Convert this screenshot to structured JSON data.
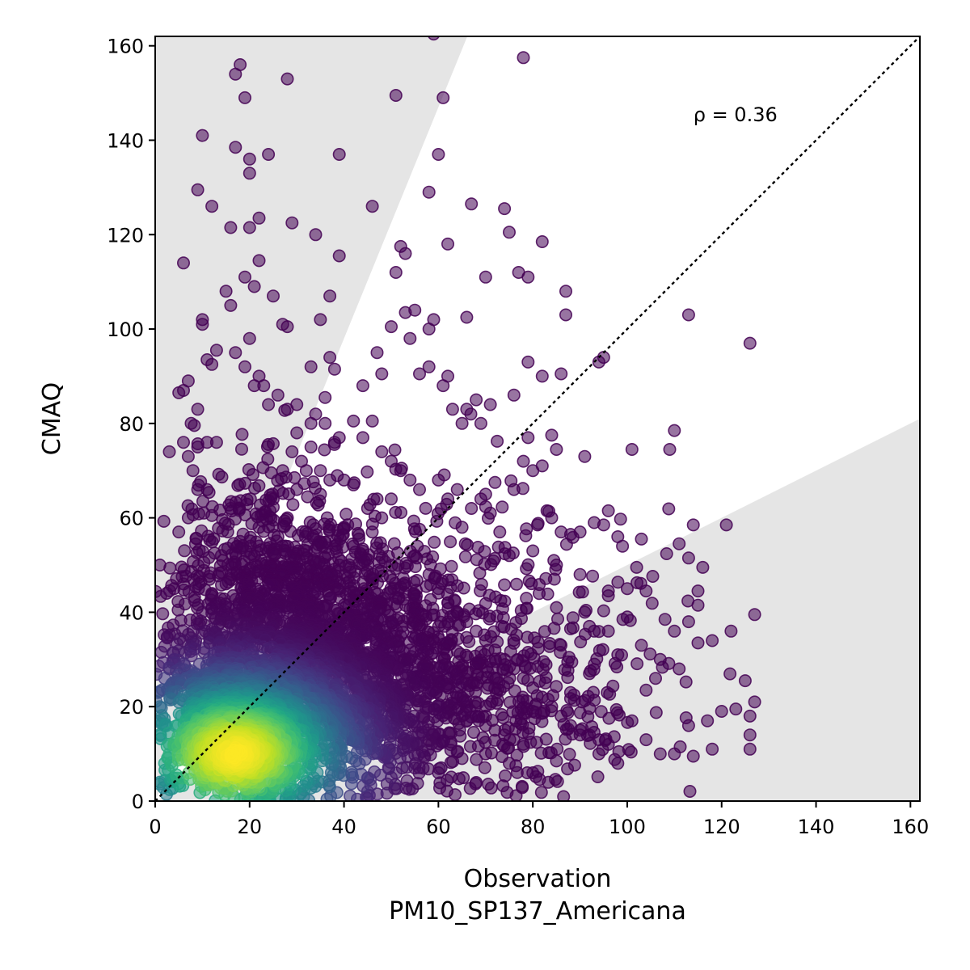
{
  "chart_data": {
    "type": "scatter",
    "title": "",
    "xlabel": "Observation",
    "xlabel_line2": "PM10_SP137_Americana",
    "ylabel": "CMAQ",
    "xlim": [
      0,
      162
    ],
    "ylim": [
      0,
      162
    ],
    "xticks": [
      0,
      20,
      40,
      60,
      80,
      100,
      120,
      140,
      160
    ],
    "yticks": [
      0,
      20,
      40,
      60,
      80,
      100,
      120,
      140,
      160
    ],
    "grid": false,
    "annotation": {
      "text": "ρ = 0.36",
      "x": 114,
      "y": 144
    },
    "reference_line": {
      "type": "identity",
      "style": "dotted",
      "color": "#000000"
    },
    "shaded_regions": {
      "color": "#e5e5e5",
      "upper_wedge_slope": 2.45,
      "lower_wedge_slope": 0.5,
      "meaning": "points outside factor-of-two band around identity"
    },
    "colormap": "viridis",
    "density_core": {
      "x": 17,
      "y": 10
    },
    "marker_alpha": 0.55,
    "outlier_points": [
      [
        6,
        114
      ],
      [
        10,
        141
      ],
      [
        12,
        126
      ],
      [
        9,
        129.5
      ],
      [
        17,
        154
      ],
      [
        18,
        156
      ],
      [
        19,
        149
      ],
      [
        22,
        123.5
      ],
      [
        20,
        133
      ],
      [
        20,
        136
      ],
      [
        17,
        138.5
      ],
      [
        28,
        153
      ],
      [
        24,
        137
      ],
      [
        16,
        121.5
      ],
      [
        20,
        121.5
      ],
      [
        29,
        122.5
      ],
      [
        34,
        120
      ],
      [
        39,
        137
      ],
      [
        35,
        102
      ],
      [
        39,
        115.5
      ],
      [
        37,
        107
      ],
      [
        46,
        126
      ],
      [
        53,
        116
      ],
      [
        51,
        149.5
      ],
      [
        59,
        162.5
      ],
      [
        61,
        149
      ],
      [
        60,
        137
      ],
      [
        58,
        129
      ],
      [
        62,
        118
      ],
      [
        74,
        125.5
      ],
      [
        67,
        126.5
      ],
      [
        75,
        120.5
      ],
      [
        78,
        157.5
      ],
      [
        82,
        118.5
      ],
      [
        77,
        112
      ],
      [
        79,
        111
      ],
      [
        70,
        111
      ],
      [
        87,
        108
      ],
      [
        66,
        102.5
      ],
      [
        87,
        103
      ],
      [
        113,
        103
      ],
      [
        126,
        97
      ],
      [
        95,
        94
      ],
      [
        94,
        93
      ],
      [
        86,
        90.5
      ],
      [
        79,
        93
      ],
      [
        82,
        90
      ],
      [
        84,
        77.5
      ],
      [
        79,
        77
      ],
      [
        85,
        74.5
      ],
      [
        91,
        73
      ],
      [
        101,
        74.5
      ],
      [
        109,
        74.5
      ],
      [
        110,
        78.5
      ],
      [
        93,
        59
      ],
      [
        96,
        61.5
      ],
      [
        95,
        58.5
      ],
      [
        98,
        56
      ],
      [
        99,
        54
      ],
      [
        103,
        55.5
      ],
      [
        111,
        54.5
      ],
      [
        114,
        58.5
      ],
      [
        121,
        58.5
      ],
      [
        113,
        51.5
      ],
      [
        116,
        49.5
      ],
      [
        102,
        49.5
      ],
      [
        104,
        44.5
      ],
      [
        96,
        44.5
      ],
      [
        96,
        43.5
      ],
      [
        100,
        45
      ],
      [
        115,
        44.5
      ],
      [
        115,
        41.5
      ],
      [
        108,
        38.5
      ],
      [
        110,
        36
      ],
      [
        113,
        38
      ],
      [
        115,
        33.5
      ],
      [
        118,
        34
      ],
      [
        122,
        36
      ],
      [
        127,
        39.5
      ],
      [
        125,
        25.5
      ],
      [
        127,
        21
      ],
      [
        126,
        18
      ],
      [
        126,
        14
      ],
      [
        126,
        11
      ],
      [
        123,
        19.5
      ],
      [
        120,
        19
      ],
      [
        117,
        17
      ],
      [
        113,
        16
      ],
      [
        110,
        10
      ],
      [
        114,
        9.5
      ],
      [
        118,
        11
      ],
      [
        107,
        10
      ],
      [
        104,
        13
      ],
      [
        101,
        17
      ],
      [
        98,
        8
      ],
      [
        94,
        10
      ],
      [
        90,
        14
      ],
      [
        85,
        8.5
      ],
      [
        80,
        6
      ],
      [
        75,
        8
      ],
      [
        70,
        10
      ],
      [
        65,
        9
      ],
      [
        60,
        6
      ],
      [
        55,
        7
      ],
      [
        50,
        5
      ],
      [
        45,
        2
      ],
      [
        104,
        23.5
      ],
      [
        106,
        26
      ],
      [
        111,
        28
      ],
      [
        107,
        30
      ],
      [
        103,
        33
      ],
      [
        98,
        31
      ],
      [
        93,
        36
      ],
      [
        100,
        39
      ],
      [
        92,
        27
      ],
      [
        88,
        23
      ],
      [
        80,
        19
      ],
      [
        6,
        87
      ],
      [
        7,
        89
      ],
      [
        5,
        86.5
      ],
      [
        9,
        83
      ],
      [
        10,
        102
      ],
      [
        10,
        101
      ],
      [
        13,
        95.5
      ],
      [
        12,
        92.5
      ],
      [
        11,
        93.5
      ],
      [
        9,
        75
      ],
      [
        11,
        76
      ],
      [
        8,
        70
      ],
      [
        13,
        76
      ],
      [
        7,
        73
      ],
      [
        6,
        76
      ],
      [
        11,
        66
      ],
      [
        9,
        66
      ],
      [
        12,
        60.5
      ],
      [
        7,
        60
      ],
      [
        5,
        57
      ],
      [
        3,
        74
      ],
      [
        1,
        50
      ],
      [
        6,
        46
      ],
      [
        4,
        45
      ],
      [
        15,
        108
      ],
      [
        16,
        105
      ],
      [
        19,
        111
      ],
      [
        21,
        109
      ],
      [
        22,
        114.5
      ],
      [
        25,
        107
      ],
      [
        27,
        101
      ],
      [
        28,
        100.5
      ],
      [
        19,
        92
      ],
      [
        22,
        90
      ],
      [
        17,
        95
      ],
      [
        20,
        98
      ],
      [
        21,
        88
      ],
      [
        24,
        84
      ],
      [
        28,
        83
      ],
      [
        30,
        78
      ],
      [
        33,
        80
      ],
      [
        36,
        85.5
      ],
      [
        33,
        92
      ],
      [
        37,
        94
      ],
      [
        38,
        91.5
      ],
      [
        39,
        77
      ],
      [
        42,
        80.5
      ],
      [
        44,
        77
      ],
      [
        46,
        80.5
      ],
      [
        44,
        88
      ],
      [
        47,
        95
      ],
      [
        48,
        90.5
      ],
      [
        50,
        100.5
      ],
      [
        51,
        112
      ],
      [
        52,
        117.5
      ],
      [
        53,
        103.5
      ],
      [
        54,
        98
      ],
      [
        55,
        104
      ],
      [
        58,
        100
      ],
      [
        59,
        102
      ],
      [
        58,
        92
      ],
      [
        56,
        90.5
      ],
      [
        61,
        88
      ],
      [
        62,
        90
      ],
      [
        63,
        83
      ],
      [
        65,
        80
      ],
      [
        66,
        83
      ],
      [
        68,
        85
      ],
      [
        69,
        80
      ],
      [
        71,
        84
      ],
      [
        76,
        86
      ],
      [
        78,
        72
      ],
      [
        80,
        70
      ],
      [
        82,
        71
      ],
      [
        76,
        66
      ],
      [
        72,
        67.5
      ],
      [
        70,
        65
      ],
      [
        84,
        60
      ],
      [
        86,
        57
      ],
      [
        83,
        61.5
      ],
      [
        81,
        58.5
      ],
      [
        85,
        50
      ],
      [
        90,
        48
      ],
      [
        91,
        40
      ],
      [
        85,
        41
      ],
      [
        88,
        36.5
      ],
      [
        92,
        37
      ],
      [
        96,
        36
      ],
      [
        90,
        57
      ],
      [
        88,
        56.5
      ],
      [
        80,
        53
      ],
      [
        75,
        52
      ],
      [
        50,
        64
      ],
      [
        48,
        60
      ],
      [
        42,
        67
      ],
      [
        40,
        68
      ],
      [
        35,
        65
      ],
      [
        32,
        70
      ],
      [
        30,
        66
      ],
      [
        28,
        60
      ],
      [
        26,
        56
      ],
      [
        24,
        53
      ],
      [
        20,
        49
      ],
      [
        15,
        46
      ],
      [
        12,
        44
      ],
      [
        10,
        40
      ],
      [
        8,
        36
      ],
      [
        6,
        34
      ],
      [
        4,
        30
      ],
      [
        3,
        28
      ],
      [
        2,
        26
      ],
      [
        1,
        20
      ],
      [
        2,
        16
      ],
      [
        3,
        12
      ],
      [
        2,
        8
      ],
      [
        1,
        4
      ],
      [
        14,
        52
      ],
      [
        18,
        55
      ],
      [
        16,
        62
      ],
      [
        22,
        58
      ],
      [
        25,
        64
      ],
      [
        27,
        70
      ],
      [
        29,
        74
      ],
      [
        31,
        72
      ],
      [
        33,
        75
      ],
      [
        35,
        70
      ],
      [
        37,
        68
      ],
      [
        40,
        58
      ],
      [
        42,
        54
      ],
      [
        44,
        50
      ],
      [
        46,
        46
      ],
      [
        48,
        42
      ],
      [
        50,
        38
      ],
      [
        52,
        35
      ],
      [
        54,
        32
      ],
      [
        56,
        30
      ],
      [
        58,
        28
      ],
      [
        60,
        26
      ],
      [
        62,
        24
      ],
      [
        64,
        22
      ],
      [
        66,
        20
      ],
      [
        68,
        18
      ],
      [
        70,
        16
      ],
      [
        72,
        15
      ],
      [
        74,
        14
      ],
      [
        76,
        13
      ],
      [
        78,
        12
      ],
      [
        55,
        52
      ],
      [
        58,
        48
      ],
      [
        60,
        45
      ],
      [
        62,
        42
      ],
      [
        64,
        40
      ],
      [
        66,
        38
      ],
      [
        68,
        36
      ],
      [
        70,
        34
      ],
      [
        72,
        32
      ],
      [
        74,
        30
      ],
      [
        76,
        28
      ],
      [
        78,
        26
      ],
      [
        80,
        24
      ],
      [
        82,
        22
      ],
      [
        84,
        20
      ],
      [
        86,
        18
      ],
      [
        88,
        16
      ],
      [
        90,
        15
      ],
      [
        92,
        14
      ],
      [
        94,
        13
      ],
      [
        96,
        12
      ],
      [
        65,
        58
      ],
      [
        67,
        62
      ],
      [
        69,
        64
      ],
      [
        71,
        61
      ],
      [
        73,
        57
      ],
      [
        60,
        68
      ],
      [
        62,
        64
      ],
      [
        64,
        66
      ],
      [
        52,
        70
      ],
      [
        54,
        68
      ],
      [
        56,
        66
      ],
      [
        45,
        62
      ],
      [
        47,
        64
      ],
      [
        50,
        72
      ],
      [
        48,
        74
      ],
      [
        38,
        76
      ],
      [
        36,
        80
      ],
      [
        34,
        82
      ],
      [
        30,
        84
      ],
      [
        26,
        86
      ],
      [
        23,
        88
      ]
    ],
    "cloud_ellipses": [
      {
        "cx": 30,
        "cy": 28,
        "sx": 16,
        "sy": 14,
        "rot": 0.55,
        "n": 1400
      },
      {
        "cx": 45,
        "cy": 30,
        "sx": 24,
        "sy": 16,
        "rot": 0.2,
        "n": 900
      },
      {
        "cx": 18,
        "cy": 14,
        "sx": 8,
        "sy": 8,
        "rot": 0.6,
        "n": 900
      },
      {
        "cx": 55,
        "cy": 20,
        "sx": 22,
        "sy": 10,
        "rot": 0.05,
        "n": 600
      },
      {
        "cx": 25,
        "cy": 45,
        "sx": 10,
        "sy": 14,
        "rot": 0.3,
        "n": 400
      }
    ]
  }
}
